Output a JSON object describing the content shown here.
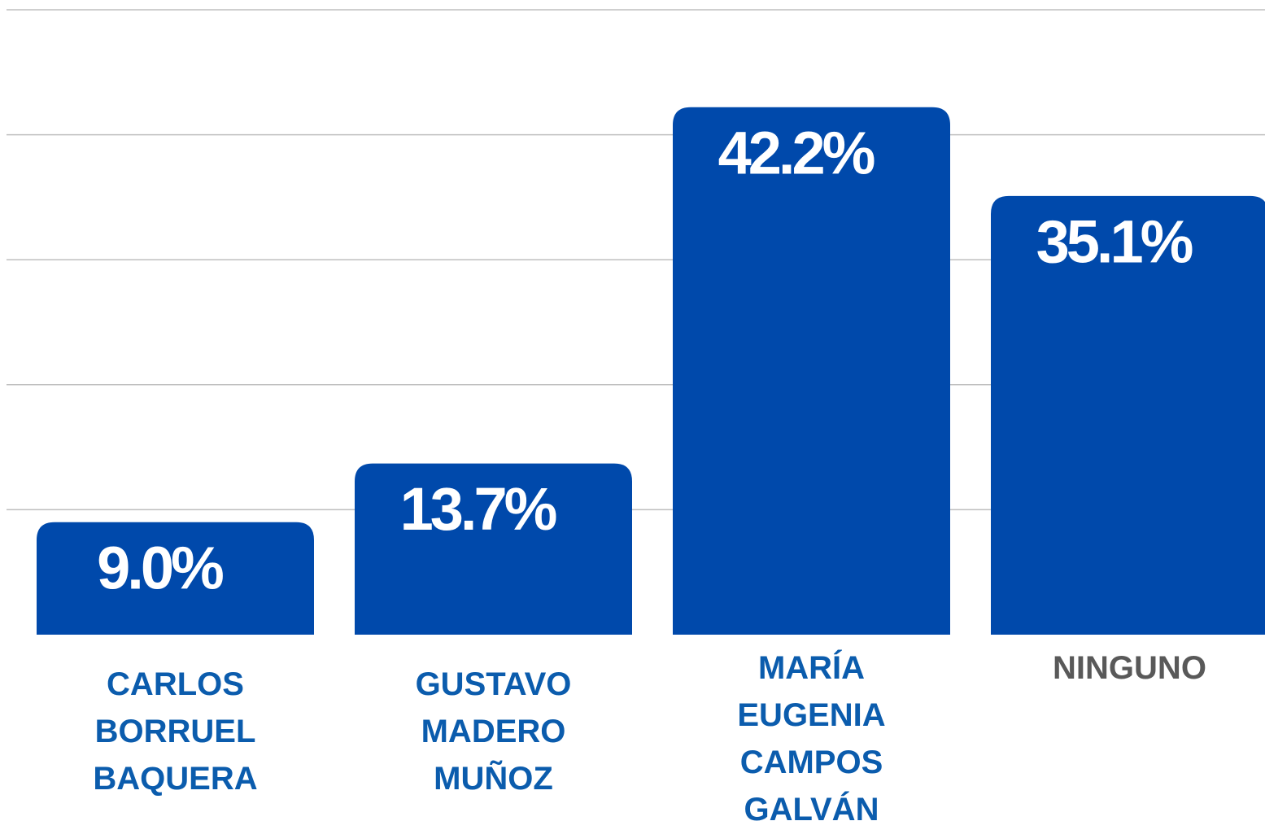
{
  "chart_data": {
    "type": "bar",
    "categories": [
      "CARLOS BORRUEL BAQUERA",
      "GUSTAVO MADERO MUÑOZ",
      "MARÍA EUGENIA CAMPOS GALVÁN",
      "NINGUNO"
    ],
    "values": [
      9.0,
      13.7,
      42.2,
      35.1
    ],
    "value_labels": [
      "9.0%",
      "13.7%",
      "42.2%",
      "35.1%"
    ],
    "color": "#0049ab",
    "category_colors": [
      "#0b5cad",
      "#0b5cad",
      "#0b5cad",
      "#595959"
    ],
    "ylim": [
      0,
      50
    ],
    "yticks": [
      10,
      20,
      30,
      40,
      50
    ],
    "grid": true
  }
}
